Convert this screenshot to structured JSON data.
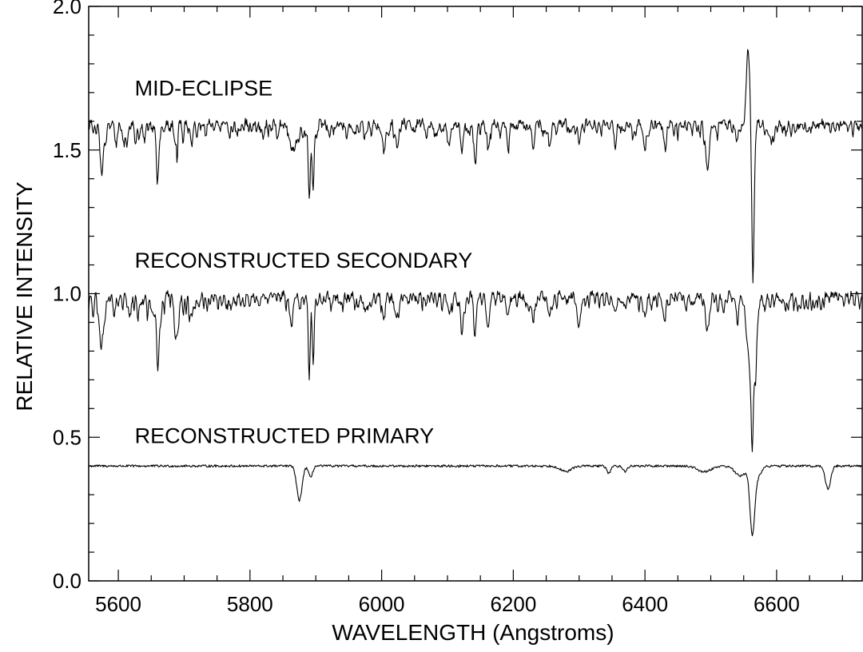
{
  "chart_data": {
    "type": "line",
    "xlabel": "WAVELENGTH (Angstroms)",
    "ylabel": "RELATIVE INTENSITY",
    "xlim": [
      5555,
      6730
    ],
    "ylim": [
      0.0,
      2.0
    ],
    "x_major_ticks": [
      5600,
      5800,
      6000,
      6200,
      6400,
      6600
    ],
    "x_minor_step": 50,
    "y_major_ticks": [
      0.0,
      0.5,
      1.0,
      1.5,
      2.0
    ],
    "y_minor_step": 0.1,
    "x_tick_labels": [
      "5600",
      "5800",
      "6000",
      "6200",
      "6400",
      "6600"
    ],
    "y_tick_labels": [
      "0.0",
      "0.5",
      "1.0",
      "1.5",
      "2.0"
    ],
    "grid": false,
    "annotations": [
      {
        "text": "MID-ECLIPSE",
        "x": 5625,
        "y": 1.69
      },
      {
        "text": "RECONSTRUCTED SECONDARY",
        "x": 5625,
        "y": 1.09
      },
      {
        "text": "RECONSTRUCTED PRIMARY",
        "x": 5625,
        "y": 0.48
      }
    ],
    "series": [
      {
        "continuum": 1.6,
        "noise": 0.012,
        "density": 0.9,
        "lines": [
          [
            5575,
            0.1,
            3
          ],
          [
            5660,
            0.16,
            2
          ],
          [
            5688,
            0.07,
            2
          ],
          [
            5711,
            0.07,
            2
          ],
          [
            5862,
            0.06,
            4
          ],
          [
            5871,
            0.06,
            -3
          ],
          [
            5890,
            0.26,
            1.5
          ],
          [
            5896,
            0.23,
            1.5
          ],
          [
            5975,
            0.05,
            2
          ],
          [
            6003,
            0.08,
            2
          ],
          [
            6023,
            0.07,
            2
          ],
          [
            6103,
            0.08,
            2
          ],
          [
            6122,
            0.1,
            2
          ],
          [
            6142,
            0.12,
            2
          ],
          [
            6162,
            0.1,
            2
          ],
          [
            6192,
            0.07,
            2
          ],
          [
            6230,
            0.08,
            2
          ],
          [
            6255,
            0.07,
            2
          ],
          [
            6300,
            0.07,
            2
          ],
          [
            6355,
            0.06,
            2
          ],
          [
            6400,
            0.06,
            2
          ],
          [
            6430,
            0.07,
            2
          ],
          [
            6495,
            0.17,
            2.5
          ],
          [
            6540,
            0.07,
            2
          ],
          [
            6557,
            -0.27,
            3
          ],
          [
            6564,
            0.57,
            1.8
          ],
          [
            6592,
            0.07,
            2
          ]
        ]
      },
      {
        "continuum": 1.0,
        "noise": 0.012,
        "density": 1.0,
        "lines": [
          [
            5575,
            0.12,
            3
          ],
          [
            5660,
            0.17,
            2
          ],
          [
            5688,
            0.08,
            2
          ],
          [
            5711,
            0.08,
            2
          ],
          [
            5862,
            0.07,
            3
          ],
          [
            5890,
            0.28,
            1.5
          ],
          [
            5896,
            0.23,
            1.5
          ],
          [
            5975,
            0.06,
            2
          ],
          [
            6003,
            0.08,
            2
          ],
          [
            6023,
            0.07,
            2
          ],
          [
            6103,
            0.08,
            2
          ],
          [
            6122,
            0.1,
            2
          ],
          [
            6142,
            0.12,
            2
          ],
          [
            6162,
            0.1,
            2
          ],
          [
            6192,
            0.07,
            2
          ],
          [
            6230,
            0.08,
            2
          ],
          [
            6255,
            0.07,
            2
          ],
          [
            6300,
            0.06,
            2
          ],
          [
            6355,
            0.07,
            2
          ],
          [
            6400,
            0.06,
            2
          ],
          [
            6430,
            0.08,
            2
          ],
          [
            6495,
            0.13,
            2.5
          ],
          [
            6540,
            0.06,
            2
          ],
          [
            6562,
            0.32,
            5
          ],
          [
            6563,
            0.18,
            1.5
          ],
          [
            6568,
            0.12,
            1.5
          ]
        ]
      },
      {
        "continuum": 0.4,
        "noise": 0.004,
        "density": 0.0,
        "lines": [
          [
            5875,
            0.12,
            4
          ],
          [
            5892,
            0.04,
            3
          ],
          [
            6280,
            0.02,
            8
          ],
          [
            6345,
            0.025,
            3
          ],
          [
            6370,
            0.02,
            3
          ],
          [
            6490,
            0.02,
            10
          ],
          [
            6545,
            0.035,
            8
          ],
          [
            6563,
            0.22,
            3.5
          ],
          [
            6570,
            0.04,
            6
          ],
          [
            6678,
            0.08,
            4
          ]
        ]
      }
    ]
  }
}
